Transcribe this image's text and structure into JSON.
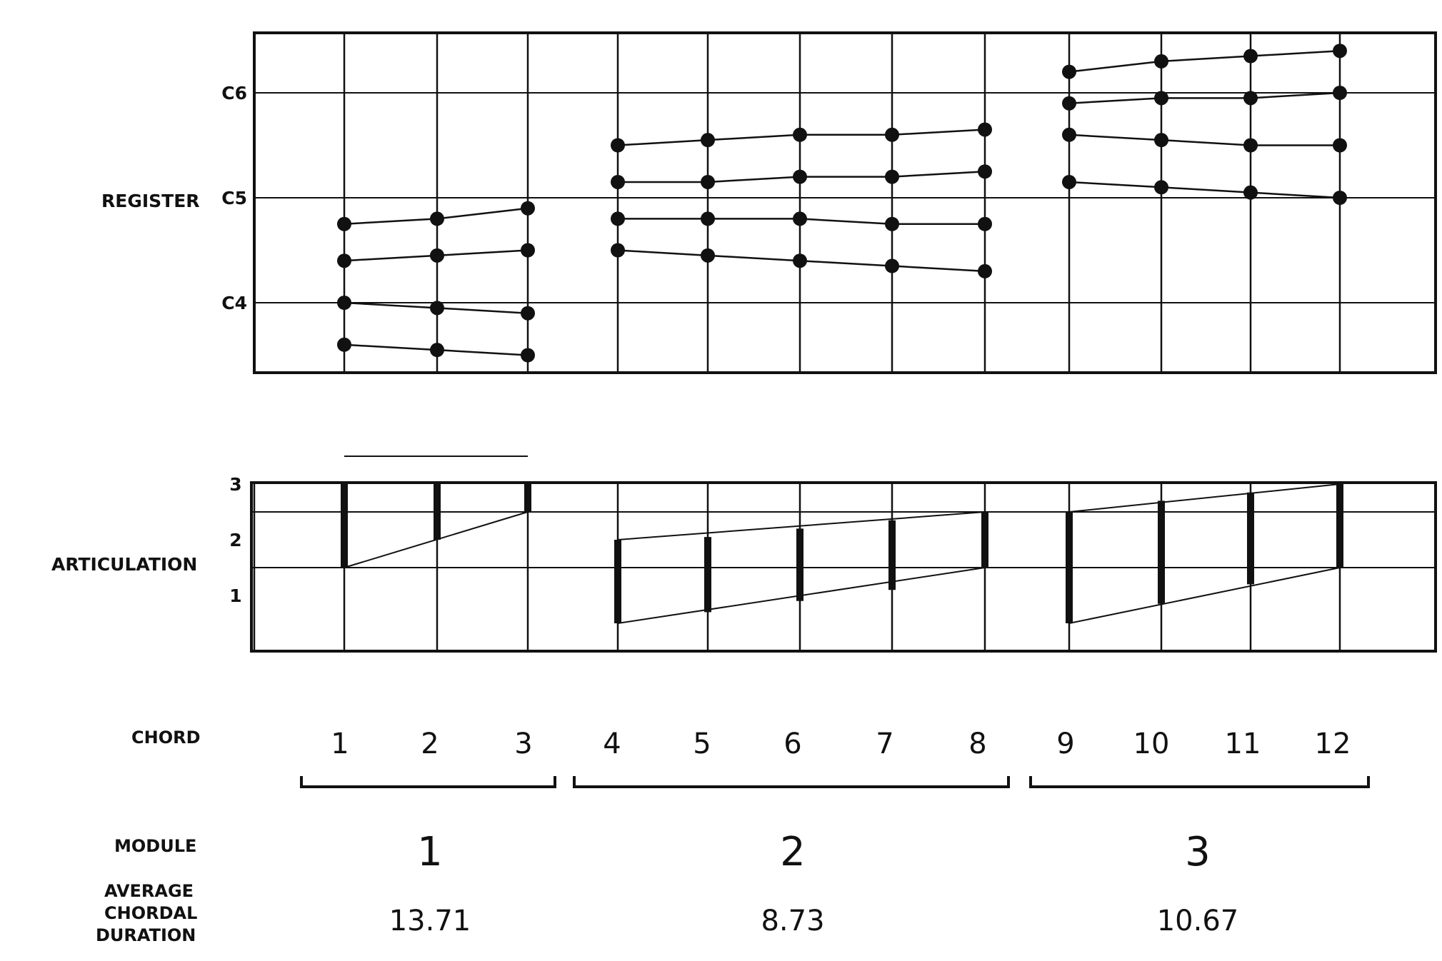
{
  "chart_data": {
    "type": "chart",
    "register": {
      "axis_label": "REGISTER",
      "y_ticks": [
        "C4",
        "C5",
        "C6"
      ],
      "chords": [
        {
          "chord": 1,
          "notes": [
            3.6,
            4.0,
            4.4,
            4.75
          ]
        },
        {
          "chord": 2,
          "notes": [
            3.55,
            3.95,
            4.45,
            4.8
          ]
        },
        {
          "chord": 3,
          "notes": [
            3.5,
            3.9,
            4.5,
            4.9
          ]
        },
        {
          "chord": 4,
          "notes": [
            4.5,
            4.8,
            5.15,
            5.5
          ]
        },
        {
          "chord": 5,
          "notes": [
            4.45,
            4.8,
            5.15,
            5.55
          ]
        },
        {
          "chord": 6,
          "notes": [
            4.4,
            4.8,
            5.2,
            5.6
          ]
        },
        {
          "chord": 7,
          "notes": [
            4.35,
            4.75,
            5.2,
            5.6
          ]
        },
        {
          "chord": 8,
          "notes": [
            4.3,
            4.75,
            5.25,
            5.65
          ]
        },
        {
          "chord": 9,
          "notes": [
            5.15,
            5.6,
            5.9,
            6.2
          ]
        },
        {
          "chord": 10,
          "notes": [
            5.1,
            5.55,
            5.95,
            6.3
          ]
        },
        {
          "chord": 11,
          "notes": [
            5.05,
            5.5,
            5.95,
            6.35
          ]
        },
        {
          "chord": 12,
          "notes": [
            5.0,
            5.5,
            6.0,
            6.4
          ]
        }
      ]
    },
    "articulation": {
      "axis_label": "ARTICULATION",
      "y_ticks": [
        "1",
        "2",
        "3"
      ],
      "ranges": [
        {
          "chord": 1,
          "low": 1.5,
          "high": 3.5
        },
        {
          "chord": 2,
          "low": 2.0,
          "high": 3.5
        },
        {
          "chord": 3,
          "low": 2.5,
          "high": 3.5
        },
        {
          "chord": 4,
          "low": 0.5,
          "high": 2.0
        },
        {
          "chord": 5,
          "low": 0.7,
          "high": 2.05
        },
        {
          "chord": 6,
          "low": 0.9,
          "high": 2.2
        },
        {
          "chord": 7,
          "low": 1.1,
          "high": 2.35
        },
        {
          "chord": 8,
          "low": 1.5,
          "high": 2.5
        },
        {
          "chord": 9,
          "low": 0.5,
          "high": 2.5
        },
        {
          "chord": 10,
          "low": 0.85,
          "high": 2.7
        },
        {
          "chord": 11,
          "low": 1.2,
          "high": 2.85
        },
        {
          "chord": 12,
          "low": 1.5,
          "high": 3.0
        }
      ]
    },
    "chord_row_label": "CHORD",
    "chord_labels": [
      "1",
      "2",
      "3",
      "4",
      "5",
      "6",
      "7",
      "8",
      "9",
      "10",
      "11",
      "12"
    ],
    "module_row_label": "MODULE",
    "modules": [
      {
        "label": "1",
        "from_chord": 1,
        "to_chord": 3,
        "average": "13.71"
      },
      {
        "label": "2",
        "from_chord": 4,
        "to_chord": 8,
        "average": "8.73"
      },
      {
        "label": "3",
        "from_chord": 9,
        "to_chord": 12,
        "average": "10.67"
      }
    ],
    "average_label_lines": [
      "AVERAGE",
      "CHORDAL",
      "DURATION"
    ]
  }
}
